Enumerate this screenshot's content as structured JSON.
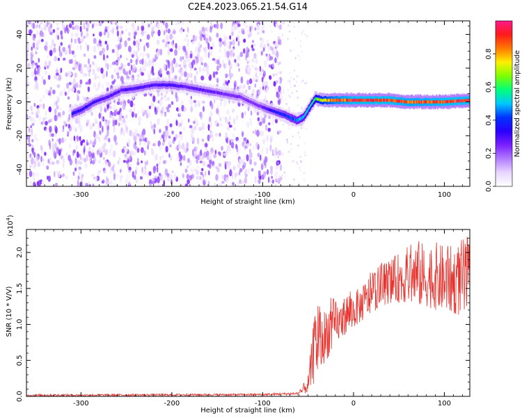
{
  "title": "C2E4.2023.065.21.54.G14",
  "colors": {
    "snr_line": "#e8322d",
    "axis": "#000000",
    "colormap": [
      "#ffffff",
      "#e8d6ff",
      "#b27cff",
      "#7a1fff",
      "#2a00ff",
      "#0033ff",
      "#00c8ff",
      "#00ff7a",
      "#7dff00",
      "#fff000",
      "#ff7a00",
      "#ff1a1a",
      "#ff1a8c"
    ]
  },
  "chart_data": [
    {
      "type": "heatmap",
      "name": "spectrogram",
      "xlabel": "Height of straight line (km)",
      "ylabel": "Frequency (Hz)",
      "xlim": [
        -360,
        128
      ],
      "ylim": [
        -50,
        48
      ],
      "x_ticks": [
        -300,
        -200,
        -100,
        0,
        100
      ],
      "x_tick_labels": [
        "-300",
        "-200",
        "-100",
        "0",
        "100"
      ],
      "y_ticks": [
        -40,
        -20,
        0,
        20,
        40
      ],
      "y_tick_labels": [
        "-40",
        "-20",
        "0",
        "20",
        "40"
      ],
      "noise_region_x": [
        -360,
        -85
      ],
      "ridge": {
        "x": [
          -310,
          -300,
          -285,
          -270,
          -255,
          -240,
          -220,
          -200,
          -185,
          -165,
          -145,
          -125,
          -105,
          -95,
          -85,
          -75,
          -62,
          -55,
          -48,
          -42,
          -35,
          -20,
          0,
          20,
          40,
          60,
          80,
          100,
          128
        ],
        "y": [
          -7,
          -5,
          0,
          3,
          7,
          8,
          10,
          10,
          9,
          7,
          5,
          3,
          -2,
          -4,
          -6,
          -8,
          -11,
          -9,
          -3,
          2,
          1,
          1,
          1,
          1,
          1,
          0,
          0,
          0,
          1
        ],
        "amplitude": [
          0.35,
          0.35,
          0.32,
          0.3,
          0.3,
          0.3,
          0.3,
          0.32,
          0.28,
          0.28,
          0.26,
          0.25,
          0.25,
          0.3,
          0.35,
          0.4,
          0.45,
          0.5,
          0.55,
          0.6,
          0.75,
          0.85,
          0.9,
          0.9,
          0.9,
          0.88,
          0.88,
          0.9,
          0.9
        ]
      }
    },
    {
      "type": "colorbar",
      "label": "Normalized spectral amplitude",
      "range": [
        0,
        1
      ],
      "ticks": [
        0.0,
        0.2,
        0.4,
        0.6,
        0.8
      ],
      "tick_labels": [
        "0.0",
        "0.2",
        "0.4",
        "0.6",
        "0.8"
      ]
    },
    {
      "type": "line",
      "name": "snr",
      "xlabel": "Height of straight line (km)",
      "ylabel": "SNR (10 * V/V)",
      "scale_label": "(x10",
      "scale_exp": "4",
      "scale_close": ")",
      "xlim": [
        -360,
        128
      ],
      "ylim": [
        0,
        2.32
      ],
      "x_ticks": [
        -300,
        -200,
        -100,
        0,
        100
      ],
      "x_tick_labels": [
        "-300",
        "-200",
        "-100",
        "0",
        "100"
      ],
      "y_ticks": [
        0.0,
        0.5,
        1.0,
        1.5,
        2.0
      ],
      "y_tick_labels": [
        "0.0",
        "0.5",
        "1.0",
        "1.5",
        "2.0"
      ],
      "envelope": {
        "x": [
          -360,
          -100,
          -60,
          -50,
          -45,
          -40,
          -35,
          -30,
          -25,
          -20,
          -15,
          -10,
          -5,
          0,
          10,
          20,
          30,
          40,
          50,
          60,
          70,
          80,
          90,
          100,
          110,
          120,
          128
        ],
        "low": [
          0.0,
          0.01,
          0.02,
          0.05,
          0.15,
          0.25,
          0.4,
          0.5,
          0.6,
          0.7,
          0.8,
          0.85,
          0.9,
          0.95,
          1.05,
          1.15,
          1.25,
          1.3,
          1.3,
          1.3,
          1.25,
          1.25,
          1.2,
          1.2,
          1.15,
          1.1,
          1.1
        ],
        "high": [
          0.03,
          0.04,
          0.06,
          0.3,
          0.9,
          1.6,
          1.1,
          1.3,
          1.4,
          1.35,
          1.3,
          1.4,
          1.5,
          1.45,
          1.55,
          1.75,
          1.85,
          1.9,
          2.0,
          2.1,
          2.2,
          2.1,
          2.15,
          2.1,
          2.1,
          2.2,
          2.25
        ]
      }
    }
  ]
}
